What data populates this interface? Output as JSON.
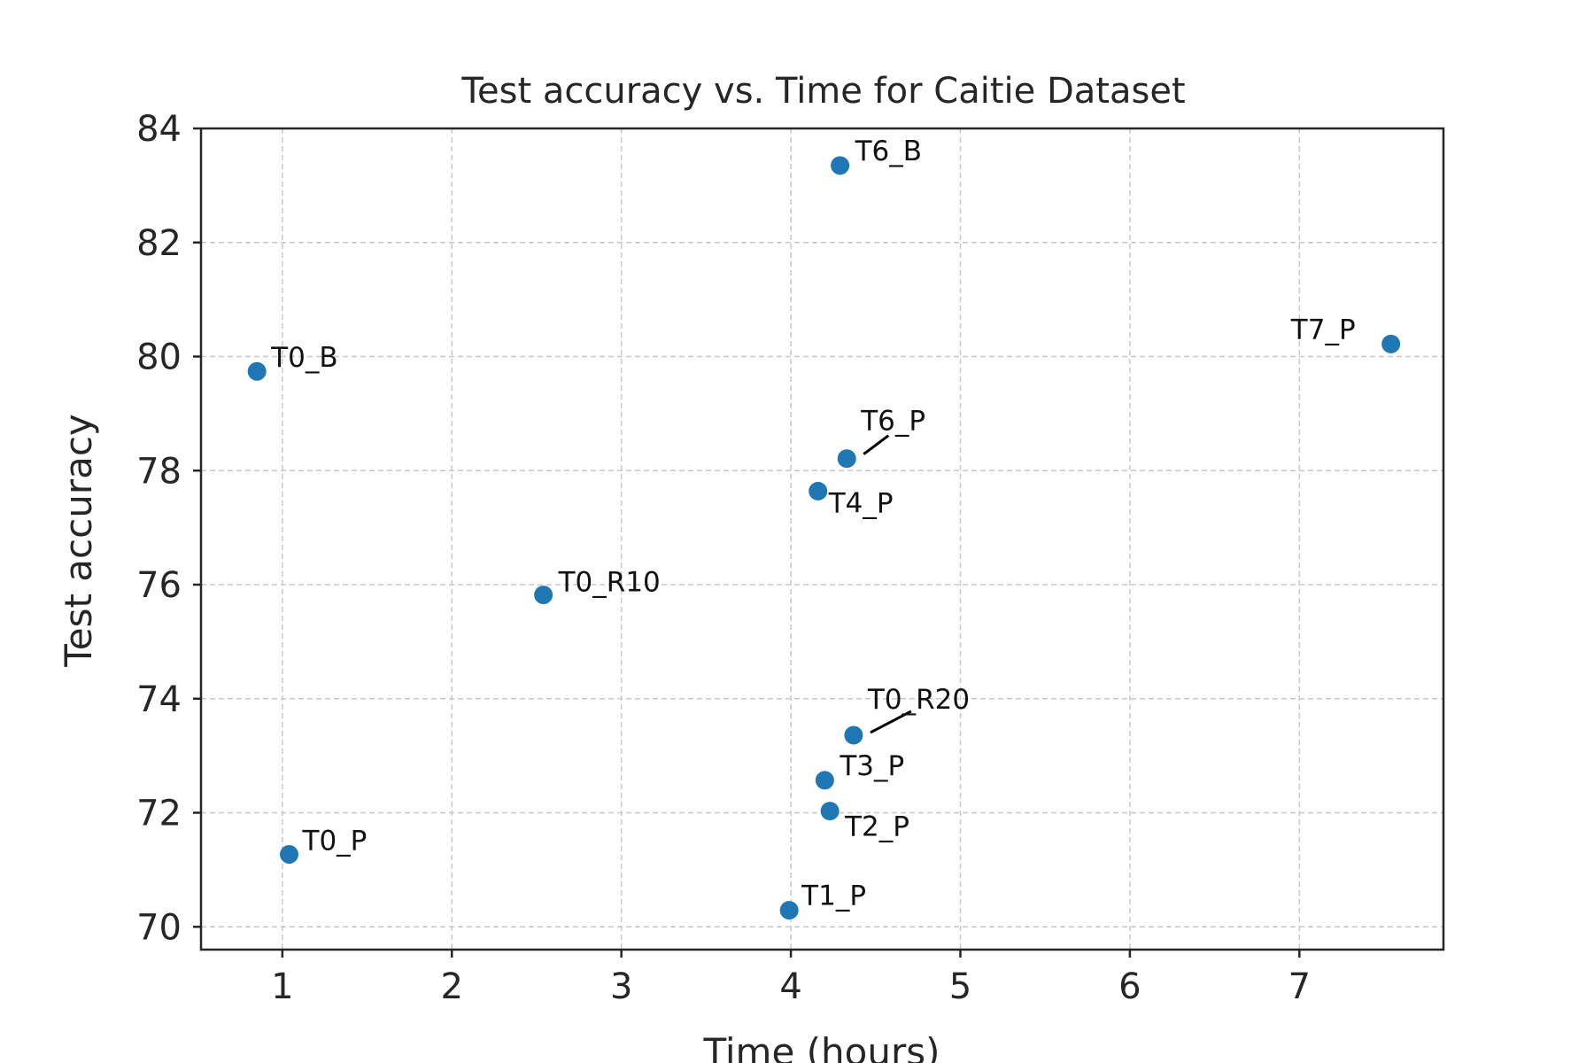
{
  "chart_data": {
    "type": "scatter",
    "title": "Test accuracy vs. Time for Caitie Dataset",
    "xlabel": "Time (hours)",
    "ylabel": "Test accuracy",
    "xlim": [
      0.52,
      7.85
    ],
    "ylim": [
      69.6,
      84.0
    ],
    "xticks": [
      1,
      2,
      3,
      4,
      5,
      6,
      7
    ],
    "yticks": [
      70,
      72,
      74,
      76,
      78,
      80,
      82,
      84
    ],
    "grid": true,
    "marker_color": "#1f77b4",
    "points": [
      {
        "label": "T6_B",
        "x": 4.29,
        "y": 83.35
      },
      {
        "label": "T7_P",
        "x": 7.54,
        "y": 80.22
      },
      {
        "label": "T0_B",
        "x": 0.85,
        "y": 79.74
      },
      {
        "label": "T6_P",
        "x": 4.33,
        "y": 78.21
      },
      {
        "label": "T4_P",
        "x": 4.16,
        "y": 77.64
      },
      {
        "label": "T0_R10",
        "x": 2.54,
        "y": 75.82
      },
      {
        "label": "T0_R20",
        "x": 4.37,
        "y": 73.36
      },
      {
        "label": "T3_P",
        "x": 4.2,
        "y": 72.57
      },
      {
        "label": "T2_P",
        "x": 4.23,
        "y": 72.03
      },
      {
        "label": "T0_P",
        "x": 1.04,
        "y": 71.27
      },
      {
        "label": "T1_P",
        "x": 3.99,
        "y": 70.29
      }
    ]
  }
}
